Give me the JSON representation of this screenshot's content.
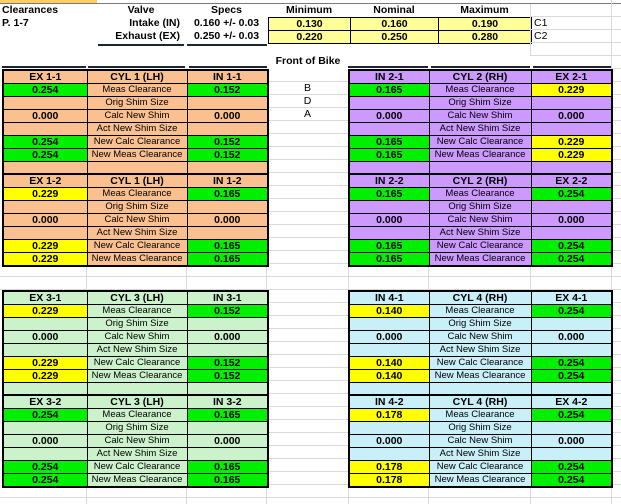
{
  "colors": {
    "green": "#00F000",
    "yellow": "#FFFF00",
    "pale_yellow": "#FFFF99",
    "peach": "#FAC090",
    "purple": "#CC99FF",
    "mint": "#CCF2CC",
    "sky": "#C9EFF9",
    "sliver_yellow": "#FBD061"
  },
  "top": {
    "clearances_label": "Clearances",
    "page_label": "P. 1-7",
    "col_headers": {
      "valve": "Valve",
      "specs": "Specs",
      "min": "Minimum",
      "nom": "Nominal",
      "max": "Maximum"
    },
    "spec_rows": [
      {
        "valve": "Intake (IN)",
        "specs": "0.160 +/- 0.03",
        "min": "0.130",
        "nom": "0.160",
        "max": "0.190",
        "code": "C1"
      },
      {
        "valve": "Exhaust (EX)",
        "specs": "0.250 +/- 0.03",
        "min": "0.220",
        "nom": "0.250",
        "max": "0.280",
        "code": "C2"
      }
    ],
    "front_label": "Front of Bike"
  },
  "row_labels": [
    "Meas Clearance",
    "Orig Shim Size",
    "Calc New Shim",
    "Act New Shim Size",
    "New Calc Clearance",
    "New Meas Clearance"
  ],
  "gap_letters": [
    "B",
    "D",
    "A"
  ],
  "block_rows": [
    {
      "spacer": true,
      "show_gap_letters": true,
      "left": {
        "theme": "peach",
        "headers": [
          "EX 1-1",
          "CYL 1 (LH)",
          "IN 1-1"
        ],
        "col_a": [
          {
            "v": "0.254",
            "f": "green"
          },
          {
            "v": "",
            "f": "theme"
          },
          {
            "v": "0.000",
            "f": "theme"
          },
          {
            "v": "",
            "f": "theme"
          },
          {
            "v": "0.254",
            "f": "green"
          },
          {
            "v": "0.254",
            "f": "green"
          }
        ],
        "col_b": [
          {
            "v": "0.152",
            "f": "green"
          },
          {
            "v": "",
            "f": "theme"
          },
          {
            "v": "0.000",
            "f": "theme"
          },
          {
            "v": "",
            "f": "theme"
          },
          {
            "v": "0.152",
            "f": "green"
          },
          {
            "v": "0.152",
            "f": "green"
          }
        ]
      },
      "right": {
        "theme": "purple",
        "headers": [
          "IN 2-1",
          "CYL 2 (RH)",
          "EX 2-1"
        ],
        "col_a": [
          {
            "v": "0.165",
            "f": "green"
          },
          {
            "v": "",
            "f": "theme"
          },
          {
            "v": "0.000",
            "f": "theme"
          },
          {
            "v": "",
            "f": "theme"
          },
          {
            "v": "0.165",
            "f": "green"
          },
          {
            "v": "0.165",
            "f": "green"
          }
        ],
        "col_b": [
          {
            "v": "0.229",
            "f": "yellow"
          },
          {
            "v": "",
            "f": "theme"
          },
          {
            "v": "0.000",
            "f": "theme"
          },
          {
            "v": "",
            "f": "theme"
          },
          {
            "v": "0.229",
            "f": "yellow"
          },
          {
            "v": "0.229",
            "f": "yellow"
          }
        ]
      }
    },
    {
      "spacer": false,
      "show_gap_letters": false,
      "left": {
        "theme": "peach",
        "headers": [
          "EX 1-2",
          "CYL 1 (LH)",
          "IN 1-2"
        ],
        "col_a": [
          {
            "v": "0.229",
            "f": "yellow"
          },
          {
            "v": "",
            "f": "theme"
          },
          {
            "v": "0.000",
            "f": "theme"
          },
          {
            "v": "",
            "f": "theme"
          },
          {
            "v": "0.229",
            "f": "yellow"
          },
          {
            "v": "0.229",
            "f": "yellow"
          }
        ],
        "col_b": [
          {
            "v": "0.165",
            "f": "green"
          },
          {
            "v": "",
            "f": "theme"
          },
          {
            "v": "0.000",
            "f": "theme"
          },
          {
            "v": "",
            "f": "theme"
          },
          {
            "v": "0.165",
            "f": "green"
          },
          {
            "v": "0.165",
            "f": "green"
          }
        ]
      },
      "right": {
        "theme": "purple",
        "headers": [
          "IN 2-2",
          "CYL 2 (RH)",
          "EX 2-2"
        ],
        "col_a": [
          {
            "v": "0.165",
            "f": "green"
          },
          {
            "v": "",
            "f": "theme"
          },
          {
            "v": "0.000",
            "f": "theme"
          },
          {
            "v": "",
            "f": "theme"
          },
          {
            "v": "0.165",
            "f": "green"
          },
          {
            "v": "0.165",
            "f": "green"
          }
        ],
        "col_b": [
          {
            "v": "0.254",
            "f": "green"
          },
          {
            "v": "",
            "f": "theme"
          },
          {
            "v": "0.000",
            "f": "theme"
          },
          {
            "v": "",
            "f": "theme"
          },
          {
            "v": "0.254",
            "f": "green"
          },
          {
            "v": "0.254",
            "f": "green"
          }
        ]
      }
    },
    {
      "spacer": true,
      "show_gap_letters": false,
      "left": {
        "theme": "mint",
        "headers": [
          "EX 3-1",
          "CYL 3 (LH)",
          "IN 3-1"
        ],
        "col_a": [
          {
            "v": "0.229",
            "f": "yellow"
          },
          {
            "v": "",
            "f": "theme"
          },
          {
            "v": "0.000",
            "f": "theme"
          },
          {
            "v": "",
            "f": "theme"
          },
          {
            "v": "0.229",
            "f": "yellow"
          },
          {
            "v": "0.229",
            "f": "yellow"
          }
        ],
        "col_b": [
          {
            "v": "0.152",
            "f": "green"
          },
          {
            "v": "",
            "f": "theme"
          },
          {
            "v": "0.000",
            "f": "theme"
          },
          {
            "v": "",
            "f": "theme"
          },
          {
            "v": "0.152",
            "f": "green"
          },
          {
            "v": "0.152",
            "f": "green"
          }
        ]
      },
      "right": {
        "theme": "sky",
        "headers": [
          "IN 4-1",
          "CYL 4 (RH)",
          "EX 4-1"
        ],
        "col_a": [
          {
            "v": "0.140",
            "f": "yellow"
          },
          {
            "v": "",
            "f": "theme"
          },
          {
            "v": "0.000",
            "f": "theme"
          },
          {
            "v": "",
            "f": "theme"
          },
          {
            "v": "0.140",
            "f": "yellow"
          },
          {
            "v": "0.140",
            "f": "yellow"
          }
        ],
        "col_b": [
          {
            "v": "0.254",
            "f": "green"
          },
          {
            "v": "",
            "f": "theme"
          },
          {
            "v": "0.000",
            "f": "theme"
          },
          {
            "v": "",
            "f": "theme"
          },
          {
            "v": "0.254",
            "f": "green"
          },
          {
            "v": "0.254",
            "f": "green"
          }
        ]
      }
    },
    {
      "spacer": false,
      "show_gap_letters": false,
      "left": {
        "theme": "mint",
        "headers": [
          "EX 3-2",
          "CYL 3 (LH)",
          "IN 3-2"
        ],
        "col_a": [
          {
            "v": "0.254",
            "f": "green"
          },
          {
            "v": "",
            "f": "theme"
          },
          {
            "v": "0.000",
            "f": "theme"
          },
          {
            "v": "",
            "f": "theme"
          },
          {
            "v": "0.254",
            "f": "green"
          },
          {
            "v": "0.254",
            "f": "green"
          }
        ],
        "col_b": [
          {
            "v": "0.165",
            "f": "green"
          },
          {
            "v": "",
            "f": "theme"
          },
          {
            "v": "0.000",
            "f": "theme"
          },
          {
            "v": "",
            "f": "theme"
          },
          {
            "v": "0.165",
            "f": "green"
          },
          {
            "v": "0.165",
            "f": "green"
          }
        ]
      },
      "right": {
        "theme": "sky",
        "headers": [
          "IN 4-2",
          "CYL 4 (RH)",
          "EX 4-2"
        ],
        "col_a": [
          {
            "v": "0.178",
            "f": "yellow"
          },
          {
            "v": "",
            "f": "theme"
          },
          {
            "v": "0.000",
            "f": "theme"
          },
          {
            "v": "",
            "f": "theme"
          },
          {
            "v": "0.178",
            "f": "yellow"
          },
          {
            "v": "0.178",
            "f": "yellow"
          }
        ],
        "col_b": [
          {
            "v": "0.254",
            "f": "green"
          },
          {
            "v": "",
            "f": "theme"
          },
          {
            "v": "0.000",
            "f": "theme"
          },
          {
            "v": "",
            "f": "theme"
          },
          {
            "v": "0.254",
            "f": "green"
          },
          {
            "v": "0.254",
            "f": "green"
          }
        ]
      }
    }
  ]
}
